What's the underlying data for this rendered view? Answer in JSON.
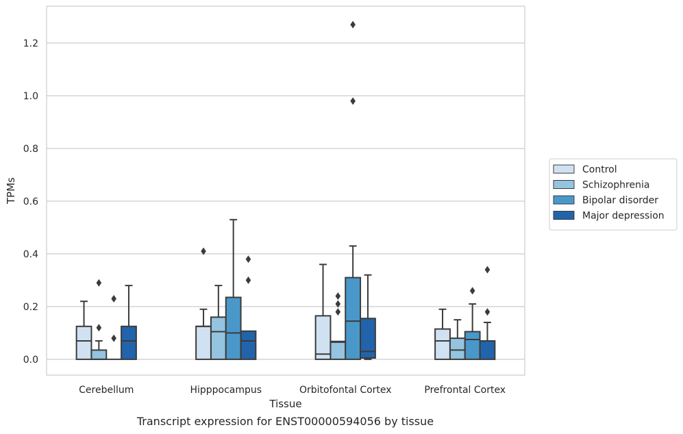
{
  "caption": "Transcript expression for ENST00000594056 by tissue",
  "chart_data": {
    "type": "box",
    "xlabel": "Tissue",
    "ylabel": "TPMs",
    "ylim": [
      -0.06,
      1.34
    ],
    "yticks": [
      0.0,
      0.2,
      0.4,
      0.6,
      0.8,
      1.0,
      1.2
    ],
    "ytick_labels": [
      "0.0",
      "0.2",
      "0.4",
      "0.6",
      "0.8",
      "1.0",
      "1.2"
    ],
    "grid": "horizontal",
    "legend_position": "right",
    "categories": [
      "Cerebellum",
      "Hipppocampus",
      "Orbitofontal Cortex",
      "Prefrontal Cortex"
    ],
    "series": [
      {
        "name": "Control",
        "color": "#d0e1f2",
        "boxes": [
          {
            "whislo": 0.0,
            "q1": 0.0,
            "med": 0.07,
            "q3": 0.125,
            "whishi": 0.22,
            "fliers": []
          },
          {
            "whislo": 0.0,
            "q1": 0.0,
            "med": 0.125,
            "q3": 0.125,
            "whishi": 0.19,
            "fliers": [
              0.41
            ]
          },
          {
            "whislo": 0.0,
            "q1": 0.0,
            "med": 0.02,
            "q3": 0.165,
            "whishi": 0.36,
            "fliers": []
          },
          {
            "whislo": 0.0,
            "q1": 0.0,
            "med": 0.07,
            "q3": 0.115,
            "whishi": 0.19,
            "fliers": []
          }
        ]
      },
      {
        "name": "Schizophrenia",
        "color": "#94c4df",
        "boxes": [
          {
            "whislo": 0.0,
            "q1": 0.0,
            "med": 0.0,
            "q3": 0.035,
            "whishi": 0.07,
            "fliers": [
              0.29,
              0.12
            ]
          },
          {
            "whislo": 0.0,
            "q1": 0.0,
            "med": 0.105,
            "q3": 0.16,
            "whishi": 0.28,
            "fliers": []
          },
          {
            "whislo": 0.0,
            "q1": 0.0,
            "med": 0.065,
            "q3": 0.068,
            "whishi": 0.068,
            "fliers": [
              0.24,
              0.21,
              0.18
            ]
          },
          {
            "whislo": 0.0,
            "q1": 0.0,
            "med": 0.035,
            "q3": 0.08,
            "whishi": 0.15,
            "fliers": []
          }
        ]
      },
      {
        "name": "Bipolar disorder",
        "color": "#4a98c9",
        "boxes": [
          {
            "whislo": 0.0,
            "q1": 0.0,
            "med": 0.0,
            "q3": 0.0,
            "whishi": 0.0,
            "fliers": [
              0.23,
              0.08
            ]
          },
          {
            "whislo": 0.0,
            "q1": 0.0,
            "med": 0.1,
            "q3": 0.235,
            "whishi": 0.53,
            "fliers": []
          },
          {
            "whislo": 0.0,
            "q1": 0.0,
            "med": 0.145,
            "q3": 0.31,
            "whishi": 0.43,
            "fliers": [
              1.27,
              0.98
            ]
          },
          {
            "whislo": 0.0,
            "q1": 0.0,
            "med": 0.075,
            "q3": 0.105,
            "whishi": 0.21,
            "fliers": [
              0.26
            ]
          }
        ]
      },
      {
        "name": "Major depression",
        "color": "#2164ab",
        "boxes": [
          {
            "whislo": 0.0,
            "q1": 0.0,
            "med": 0.07,
            "q3": 0.125,
            "whishi": 0.28,
            "fliers": []
          },
          {
            "whislo": 0.0,
            "q1": 0.0,
            "med": 0.07,
            "q3": 0.107,
            "whishi": 0.107,
            "fliers": [
              0.38,
              0.3
            ]
          },
          {
            "whislo": 0.0,
            "q1": 0.005,
            "med": 0.03,
            "q3": 0.155,
            "whishi": 0.32,
            "fliers": []
          },
          {
            "whislo": 0.0,
            "q1": 0.0,
            "med": 0.07,
            "q3": 0.07,
            "whishi": 0.14,
            "fliers": [
              0.34,
              0.18
            ]
          }
        ]
      }
    ]
  }
}
